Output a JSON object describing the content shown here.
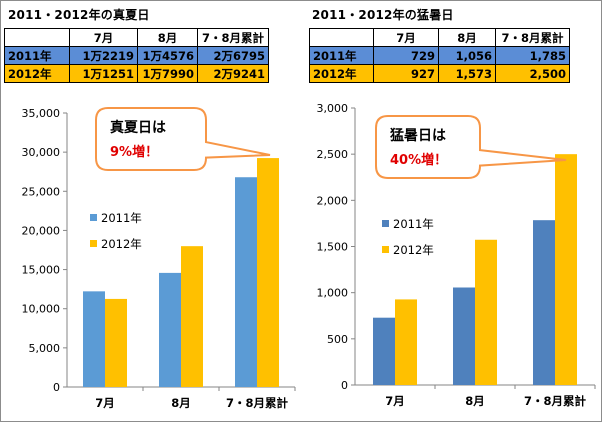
{
  "left": {
    "title": "2011・2012年の真夏日",
    "table": {
      "headers": [
        "",
        "7月",
        "8月",
        "7・8月累計"
      ],
      "rows": [
        {
          "label": "2011年",
          "cells": [
            "1万2219",
            "1万4576",
            "2万6795"
          ]
        },
        {
          "label": "2012年",
          "cells": [
            "1万1251",
            "1万7990",
            "2万9241"
          ]
        }
      ]
    },
    "callout": {
      "line1": "真夏日は",
      "line2": "9%増！"
    }
  },
  "right": {
    "title": "2011・2012年の猛暑日",
    "table": {
      "headers": [
        "",
        "7月",
        "8月",
        "7・8月累計"
      ],
      "rows": [
        {
          "label": "2011年",
          "cells": [
            "729",
            "1,056",
            "1,785"
          ]
        },
        {
          "label": "2012年",
          "cells": [
            "927",
            "1,573",
            "2,500"
          ]
        }
      ]
    },
    "callout": {
      "line1": "猛暑日は",
      "line2": "40%増！"
    }
  },
  "colors": {
    "series_2011_left": "#5b9bd5",
    "series_2011_right": "#4f81bd",
    "series_2012": "#ffc000",
    "callout_border": "#f79646",
    "callout_accent": "#e00000"
  },
  "chart_data": [
    {
      "type": "bar",
      "categories": [
        "7月",
        "8月",
        "7・8月累計"
      ],
      "series": [
        {
          "name": "2011年",
          "values": [
            12219,
            14576,
            26795
          ]
        },
        {
          "name": "2012年",
          "values": [
            11251,
            17990,
            29241
          ]
        }
      ],
      "ylim": [
        0,
        35000
      ],
      "yticks": [
        "0",
        "5,000",
        "10,000",
        "15,000",
        "20,000",
        "25,000",
        "30,000",
        "35,000"
      ],
      "legend": "left"
    },
    {
      "type": "bar",
      "categories": [
        "7月",
        "8月",
        "7・8月累計"
      ],
      "series": [
        {
          "name": "2011年",
          "values": [
            729,
            1056,
            1785
          ]
        },
        {
          "name": "2012年",
          "values": [
            927,
            1573,
            2500
          ]
        }
      ],
      "ylim": [
        0,
        3000
      ],
      "yticks": [
        "0",
        "500",
        "1,000",
        "1,500",
        "2,000",
        "2,500",
        "3,000"
      ],
      "legend": "left"
    }
  ]
}
